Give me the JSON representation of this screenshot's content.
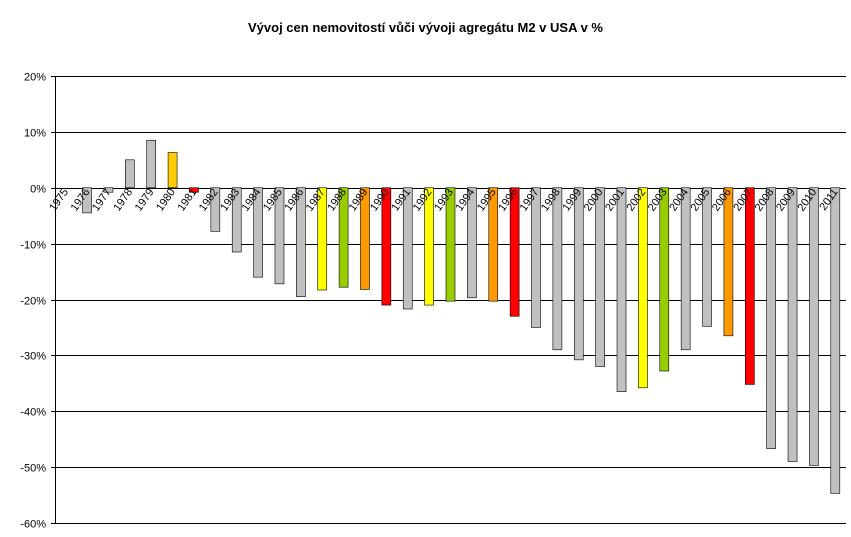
{
  "chart_data": {
    "type": "bar",
    "title": "Vývoj cen nemovitostí vůči vývoji agregátu M2 v USA v %",
    "xlabel": "",
    "ylabel": "",
    "ylim": [
      -60,
      20
    ],
    "yticks": [
      20,
      10,
      0,
      -10,
      -20,
      -30,
      -40,
      -50,
      -60
    ],
    "ytick_labels": [
      "20%",
      "10%",
      "0%",
      "-10%",
      "-20%",
      "-30%",
      "-40%",
      "-50%",
      "-60%"
    ],
    "grid": true,
    "legend": "none",
    "categories": [
      "1975",
      "1976",
      "1977",
      "1978",
      "1979",
      "1980",
      "1981",
      "1982",
      "1983",
      "1984",
      "1985",
      "1986",
      "1987",
      "1988",
      "1989",
      "1990",
      "1991",
      "1992",
      "1993",
      "1994",
      "1995",
      "1996",
      "1997",
      "1998",
      "1999",
      "2000",
      "2001",
      "2002",
      "2003",
      "2004",
      "2005",
      "2006",
      "2007",
      "2008",
      "2009",
      "2010",
      "2011"
    ],
    "values": [
      0,
      -4.5,
      -0.8,
      5.0,
      8.5,
      6.3,
      -0.8,
      -7.8,
      -11.5,
      -16.0,
      -17.2,
      -19.5,
      -18.3,
      -17.8,
      -18.2,
      -21.0,
      -21.7,
      -21.0,
      -20.3,
      -19.7,
      -20.3,
      -23.0,
      -25.0,
      -29.0,
      -30.8,
      -32.0,
      -36.5,
      -35.8,
      -32.8,
      -29.0,
      -24.8,
      -26.5,
      -35.2,
      -46.7,
      -49.0,
      -49.7,
      -54.7
    ],
    "colors": [
      "#c0c0c0",
      "#c0c0c0",
      "#c0c0c0",
      "#c0c0c0",
      "#c0c0c0",
      "#ffcc00",
      "#ff0000",
      "#c0c0c0",
      "#c0c0c0",
      "#c0c0c0",
      "#c0c0c0",
      "#c0c0c0",
      "#ffff00",
      "#99cc00",
      "#ff9900",
      "#ff0000",
      "#c0c0c0",
      "#ffff00",
      "#99cc00",
      "#c0c0c0",
      "#ff9900",
      "#ff0000",
      "#c0c0c0",
      "#c0c0c0",
      "#c0c0c0",
      "#c0c0c0",
      "#c0c0c0",
      "#ffff00",
      "#99cc00",
      "#c0c0c0",
      "#c0c0c0",
      "#ff9900",
      "#ff0000",
      "#c0c0c0",
      "#c0c0c0",
      "#c0c0c0",
      "#c0c0c0"
    ]
  }
}
